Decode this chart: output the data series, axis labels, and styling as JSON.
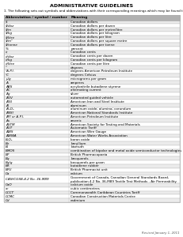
{
  "title": "ADMINISTRATIVE GUIDELINES",
  "subtitle": "1. The following sets out symbols and abbreviations with their corresponding meanings which may be found throughout this Customs Tariff.",
  "header_col1": "Abbreviation / symbol / number",
  "header_col2": "Meaning",
  "rows": [
    [
      "$",
      "Canadian dollars"
    ],
    [
      "$/doz",
      "Canadian dollars per dozen"
    ],
    [
      "$/m",
      "Canadian dollars per metre/litre"
    ],
    [
      "$/kg",
      "Canadian dollars per kilogram"
    ],
    [
      "$/litre",
      "Canadian dollars per litre"
    ],
    [
      "$/m²",
      "Canadian dollars per square metre"
    ],
    [
      "$/tonne",
      "Canadian dollars per tonne"
    ],
    [
      "%",
      "percent"
    ],
    [
      "¢",
      "Canadian cents"
    ],
    [
      "¢/doz",
      "Canadian cents per dozen"
    ],
    [
      "¢/kg",
      "Canadian cents per kilogram"
    ],
    [
      "¢/litre",
      "Canadian cents per litre"
    ],
    [
      "°",
      "degrees"
    ],
    [
      "°A.P.I.",
      "degrees American Petroleum Institute"
    ],
    [
      "°C",
      "degrees Celsius"
    ],
    [
      "μ/g",
      "micrograms per gram"
    ],
    [
      "A",
      "amperes"
    ],
    [
      "ABS",
      "acrylonitrile butadiene styrene"
    ],
    [
      "AC",
      "alternating current"
    ],
    [
      "Ag",
      "silver"
    ],
    [
      "AGV",
      "automated guided vehicle"
    ],
    [
      "AISI",
      "American Iron and Steel Institute"
    ],
    [
      "Al",
      "aluminum"
    ],
    [
      "Al₂O₃",
      "aluminum oxide; alumina; corundum"
    ],
    [
      "ANSI",
      "American National Standards Institute"
    ],
    [
      "API or A.P.I.",
      "American Petroleum Institute"
    ],
    [
      "As",
      "arsenic"
    ],
    [
      "ASTM",
      "American Society for Testing and Materials"
    ],
    [
      "AUT",
      "Automatic Tariff"
    ],
    [
      "AWS",
      "American Wire Gauge"
    ],
    [
      "AWWA",
      "American Water Works Association"
    ],
    [
      "B₂O₃",
      "boron oxide"
    ],
    [
      "Be",
      "beryllium"
    ],
    [
      "Bi",
      "bismuth"
    ],
    [
      "BMOS",
      "combination of bipolar and metal oxide semiconductor technologies"
    ],
    [
      "BP",
      "British Pharmacopoeia"
    ],
    [
      "Bq",
      "becquerels"
    ],
    [
      "Bq/g",
      "becquerels per gram"
    ],
    [
      "BR",
      "butadiene rubber"
    ],
    [
      "BPU",
      "British Pharmacist unit"
    ],
    [
      "Ca",
      "calcium"
    ],
    [
      "CAN/CGSB-4.2 No. 36-M89",
      "Government of Canada, Canadian General Standards Board,\npublication 4.2 No. 36-M89 Textile Test Methods - Air Permeability"
    ],
    [
      "CaO",
      "calcium oxide"
    ],
    [
      "cc",
      "cubic centimetres"
    ],
    [
      "CCCT",
      "Commonwealth Caribbean Countries Tariff"
    ],
    [
      "CCMC",
      "Canadian Construction Materials Centre"
    ],
    [
      "Cd",
      "cadmium"
    ]
  ],
  "footer": "Revised January 1, 2011",
  "bg_color": "#ffffff",
  "header_bg": "#b0b0b0",
  "row_bg_alt": "#ebebeb",
  "row_bg_main": "#ffffff",
  "border_color": "#aaaaaa",
  "text_color": "#000000",
  "title_color": "#000000",
  "footer_color": "#555555"
}
